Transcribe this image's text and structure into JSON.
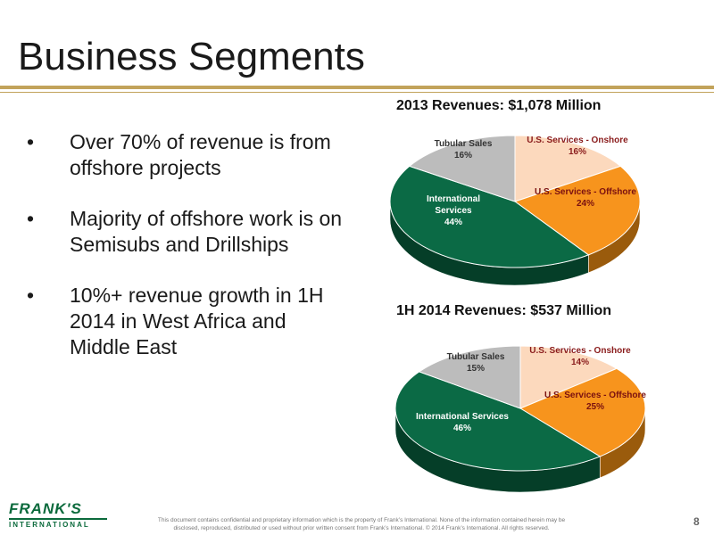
{
  "slide": {
    "title": "Business Segments",
    "page_number": "8",
    "bullets": [
      "Over 70% of revenue is from offshore projects",
      "Majority of offshore work is on Semisubs and Drillships",
      "10%+ revenue growth in 1H 2014 in West Africa and Middle East"
    ],
    "footer": "This document contains confidential and proprietary information which is the property of Frank’s International. None of the information contained herein may be disclosed, reproduced, distributed or used without prior written consent from Frank’s International. © 2014 Frank’s International. All rights reserved.",
    "logo": {
      "main": "FRANK'S",
      "sub": "INTERNATIONAL"
    }
  },
  "colors": {
    "onshore": "#fcd9bd",
    "offshore": "#f7941d",
    "international": "#0b6a45",
    "tubular": "#bcbcbc",
    "gold_rule": "#c2a35b"
  },
  "chart_data": [
    {
      "type": "pie",
      "title": "2013 Revenues: $1,078 Million",
      "categories": [
        "U.S. Services - Onshore",
        "U.S. Services - Offshore",
        "International Services",
        "Tubular Sales"
      ],
      "values": [
        16,
        24,
        44,
        16
      ],
      "labels": [
        [
          "U.S. Services - Onshore",
          "16%"
        ],
        [
          "U.S. Services - Offshore",
          "24%"
        ],
        [
          "International",
          "Services",
          "44%"
        ],
        [
          "Tubular Sales",
          "16%"
        ]
      ]
    },
    {
      "type": "pie",
      "title": "1H 2014 Revenues: $537 Million",
      "categories": [
        "U.S. Services - Onshore",
        "U.S. Services - Offshore",
        "International Services",
        "Tubular Sales"
      ],
      "values": [
        14,
        25,
        46,
        15
      ],
      "labels": [
        [
          "U.S. Services - Onshore",
          "14%"
        ],
        [
          "U.S. Services - Offshore",
          "25%"
        ],
        [
          "International Services",
          "46%"
        ],
        [
          "Tubular Sales",
          "15%"
        ]
      ]
    }
  ]
}
